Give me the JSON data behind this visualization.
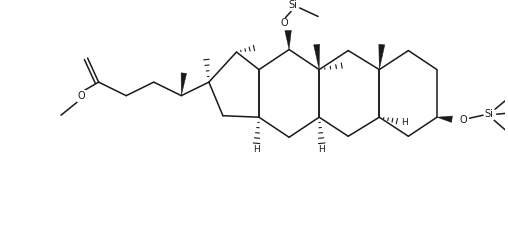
{
  "background_color": "#ffffff",
  "line_color": "#1a1a1a",
  "line_width": 1.1,
  "figsize": [
    5.08,
    2.35
  ],
  "dpi": 100,
  "xlim": [
    0,
    10
  ],
  "ylim": [
    0,
    4.62
  ]
}
